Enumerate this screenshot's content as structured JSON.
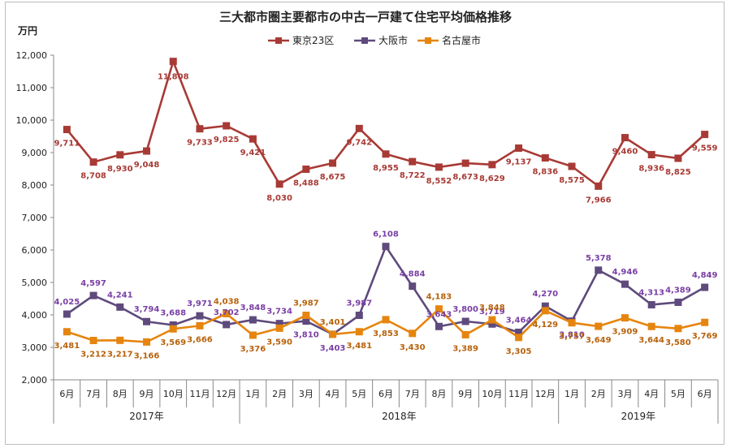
{
  "chart_data": {
    "type": "line",
    "title": "三大都市圏主要都市の中古一戸建て住宅平均価格推移",
    "ylabel": "万円",
    "ylim": [
      2000,
      12000
    ],
    "yticks": [
      "2,000",
      "3,000",
      "4,000",
      "5,000",
      "6,000",
      "7,000",
      "8,000",
      "9,000",
      "10,000",
      "11,000",
      "12,000"
    ],
    "grid": false,
    "legend_position": "top",
    "categories": [
      "6月",
      "7月",
      "8月",
      "9月",
      "10月",
      "11月",
      "12月",
      "1月",
      "2月",
      "3月",
      "4月",
      "5月",
      "6月",
      "7月",
      "8月",
      "9月",
      "10月",
      "11月",
      "12月",
      "1月",
      "2月",
      "3月",
      "4月",
      "5月",
      "6月"
    ],
    "year_groups": [
      {
        "label": "2017年",
        "count": 7
      },
      {
        "label": "2018年",
        "count": 12
      },
      {
        "label": "2019年",
        "count": 6
      }
    ],
    "series": [
      {
        "name": "東京23区",
        "color": "#a83a35",
        "marker": "square",
        "values": [
          9711,
          8708,
          8930,
          9048,
          11808,
          9733,
          9825,
          9421,
          8030,
          8488,
          8675,
          9742,
          8955,
          8722,
          8552,
          8673,
          8629,
          9137,
          8836,
          8575,
          7966,
          9460,
          8936,
          8825,
          9559
        ],
        "labels": [
          "9,711",
          "8,708",
          "8,930",
          "9,048",
          "11,808",
          "9,733",
          "9,825",
          "9,421",
          "8,030",
          "8,488",
          "8,675",
          "9,742",
          "8,955",
          "8,722",
          "8,552",
          "8,673",
          "8,629",
          "9,137",
          "8,836",
          "8,575",
          "7,966",
          "9,460",
          "8,936",
          "8,825",
          "9,559"
        ]
      },
      {
        "name": "大阪市",
        "color": "#5e4a7c",
        "label_color": "#7a3fa5",
        "marker": "square",
        "values": [
          4025,
          4597,
          4241,
          3794,
          3688,
          3971,
          3702,
          3848,
          3734,
          3810,
          3403,
          3987,
          6108,
          4884,
          3643,
          3800,
          3719,
          3464,
          4270,
          3810,
          5378,
          4946,
          4313,
          4389,
          4849
        ],
        "labels": [
          "4,025",
          "4,597",
          "4,241",
          "3,794",
          "3,688",
          "3,971",
          "3,702",
          "3,848",
          "3,734",
          "3,810",
          "3,403",
          "3,987",
          "6,108",
          "4,884",
          "3,643",
          "3,800",
          "3,719",
          "3,464",
          "4,270",
          "3,810",
          "5,378",
          "4,946",
          "4,313",
          "4,389",
          "4,849"
        ]
      },
      {
        "name": "名古屋市",
        "color": "#e5850e",
        "label_color": "#b7620c",
        "marker": "square",
        "values": [
          3481,
          3212,
          3217,
          3166,
          3569,
          3666,
          4038,
          3376,
          3590,
          3987,
          3401,
          3481,
          3853,
          3430,
          4183,
          3389,
          3848,
          3305,
          4129,
          3757,
          3649,
          3909,
          3644,
          3580,
          3769
        ],
        "labels": [
          "3,481",
          "3,212",
          "3,217",
          "3,166",
          "3,569",
          "3,666",
          "4,038",
          "3,376",
          "3,590",
          "3,987",
          "3,401",
          "3,481",
          "3,853",
          "3,430",
          "4,183",
          "3,389",
          "3,848",
          "3,305",
          "4,129",
          "3,757",
          "3,649",
          "3,909",
          "3,644",
          "3,580",
          "3,769"
        ]
      }
    ]
  }
}
